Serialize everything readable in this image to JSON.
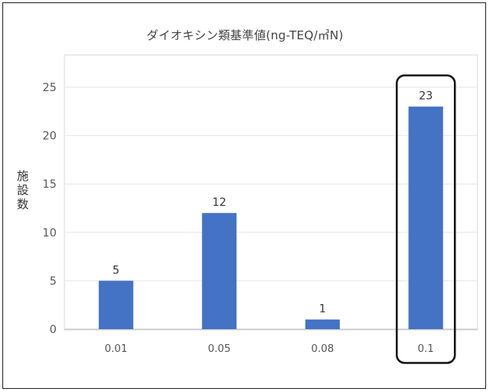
{
  "chart_data": {
    "type": "bar",
    "title": "ダイオキシン類基準値(ng-TEQ/㎥N)",
    "ylabel": "施設数",
    "xlabel": "",
    "categories": [
      "0.01",
      "0.05",
      "0.08",
      "0.1"
    ],
    "values": [
      5,
      12,
      1,
      23
    ],
    "ylim": [
      0,
      25
    ],
    "yticks": [
      0,
      5,
      10,
      15,
      20,
      25
    ],
    "grid": true,
    "legend": "none",
    "bar_color": "#4472C4",
    "highlight": {
      "category": "0.1",
      "style": "rounded-outline"
    }
  }
}
